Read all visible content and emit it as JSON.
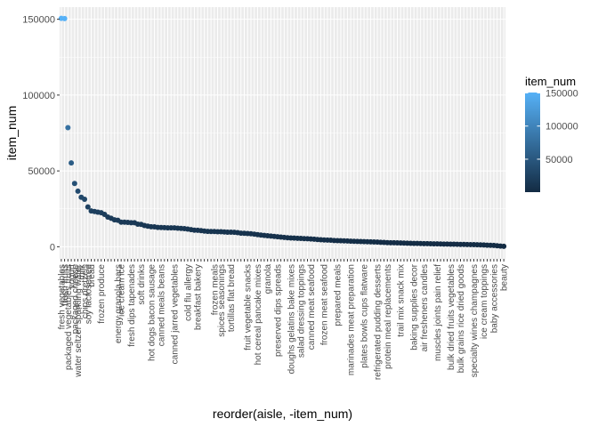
{
  "chart_data": {
    "type": "scatter",
    "xlabel": "reorder(aisle, -item_num)",
    "ylabel": "item_num",
    "ylim": [
      -8000,
      158000
    ],
    "y_ticks": [
      0,
      50000,
      100000,
      150000
    ],
    "y_tick_labels": [
      "0",
      "50000",
      "100000",
      "150000"
    ],
    "grid": true,
    "background": "#ebebeb",
    "legend": {
      "title": "item_num",
      "position": "right",
      "gradient_low": "#132b43",
      "gradient_high": "#56b1f7",
      "breaks": [
        50000,
        100000,
        150000
      ],
      "labels": [
        "50000",
        "100000",
        "150000"
      ],
      "range": [
        287,
        150609
      ]
    },
    "x_count": 134,
    "x_labels_visible": [
      {
        "index": 1,
        "label": "fresh vegetables"
      },
      {
        "index": 2,
        "label": "fresh fruits"
      },
      {
        "index": 3,
        "label": "packaged vegetables fruits"
      },
      {
        "index": 4,
        "label": "yogurt"
      },
      {
        "index": 5,
        "label": "packaged cheese"
      },
      {
        "index": 6,
        "label": "water seltzer sparkling water"
      },
      {
        "index": 7,
        "label": "milk"
      },
      {
        "index": 8,
        "label": "chips pretzels"
      },
      {
        "index": 9,
        "label": "soy lactosefree"
      },
      {
        "index": 10,
        "label": "bread"
      },
      {
        "index": 13,
        "label": "frozen produce"
      },
      {
        "index": 18,
        "label": "energy granola bars"
      },
      {
        "index": 19,
        "label": "ice cream ice"
      },
      {
        "index": 22,
        "label": "fresh dips tapenades"
      },
      {
        "index": 25,
        "label": "soft drinks"
      },
      {
        "index": 28,
        "label": "hot dogs bacon sausage"
      },
      {
        "index": 31,
        "label": "canned meals beans"
      },
      {
        "index": 35,
        "label": "canned jarred vegetables"
      },
      {
        "index": 39,
        "label": "cold flu allergy"
      },
      {
        "index": 42,
        "label": "breakfast bakery"
      },
      {
        "index": 47,
        "label": "frozen meals"
      },
      {
        "index": 49,
        "label": "spices seasonings"
      },
      {
        "index": 52,
        "label": "tortillas flat bread"
      },
      {
        "index": 57,
        "label": "fruit vegetable snacks"
      },
      {
        "index": 60,
        "label": "hot cereal pancake mixes"
      },
      {
        "index": 63,
        "label": "granola"
      },
      {
        "index": 66,
        "label": "preserved dips spreads"
      },
      {
        "index": 70,
        "label": "doughs gelatins bake mixes"
      },
      {
        "index": 73,
        "label": "salad dressing toppings"
      },
      {
        "index": 76,
        "label": "canned meat seafood"
      },
      {
        "index": 80,
        "label": "frozen meat seafood"
      },
      {
        "index": 84,
        "label": "prepared meals"
      },
      {
        "index": 88,
        "label": "marinades meat preparation"
      },
      {
        "index": 92,
        "label": "plates bowls cups flatware"
      },
      {
        "index": 96,
        "label": "refrigerated pudding desserts"
      },
      {
        "index": 99,
        "label": "protein meal replacements"
      },
      {
        "index": 103,
        "label": "trail mix snack mix"
      },
      {
        "index": 107,
        "label": "baking supplies decor"
      },
      {
        "index": 110,
        "label": "air fresheners candles"
      },
      {
        "index": 114,
        "label": "muscles joints pain relief"
      },
      {
        "index": 118,
        "label": "bulk dried fruits vegetables"
      },
      {
        "index": 121,
        "label": "bulk grains rice dried goods"
      },
      {
        "index": 125,
        "label": "specialty wines champagnes"
      },
      {
        "index": 128,
        "label": "ice cream toppings"
      },
      {
        "index": 131,
        "label": "baby accessories"
      },
      {
        "index": 134,
        "label": "beauty"
      }
    ],
    "y": [
      150609,
      150473,
      78493,
      55240,
      41699,
      36617,
      32644,
      31269,
      26240,
      23635,
      23228,
      22827,
      22453,
      21336,
      19592,
      18726,
      17714,
      17449,
      16201,
      16179,
      16064,
      15800,
      15798,
      14858,
      14713,
      13982,
      13535,
      13181,
      13098,
      12771,
      12702,
      12626,
      12489,
      12466,
      12428,
      12244,
      12103,
      11942,
      11623,
      11302,
      10940,
      10817,
      10614,
      10332,
      10142,
      10051,
      10001,
      9917,
      9904,
      9767,
      9625,
      9581,
      9534,
      9277,
      8927,
      8836,
      8716,
      8536,
      8313,
      7978,
      7660,
      7442,
      7243,
      7047,
      6814,
      6574,
      6345,
      6138,
      5911,
      5754,
      5683,
      5574,
      5475,
      5378,
      5287,
      5091,
      4946,
      4765,
      4590,
      4471,
      4393,
      4289,
      4112,
      4039,
      3983,
      3877,
      3792,
      3676,
      3572,
      3480,
      3463,
      3358,
      3317,
      3224,
      3112,
      3046,
      2955,
      2846,
      2728,
      2652,
      2615,
      2549,
      2470,
      2403,
      2339,
      2293,
      2206,
      2171,
      2137,
      2072,
      2018,
      1974,
      1920,
      1874,
      1816,
      1774,
      1733,
      1690,
      1647,
      1602,
      1548,
      1504,
      1462,
      1420,
      1375,
      1331,
      1234,
      1135,
      1031,
      942,
      852,
      661,
      448,
      287
    ]
  }
}
